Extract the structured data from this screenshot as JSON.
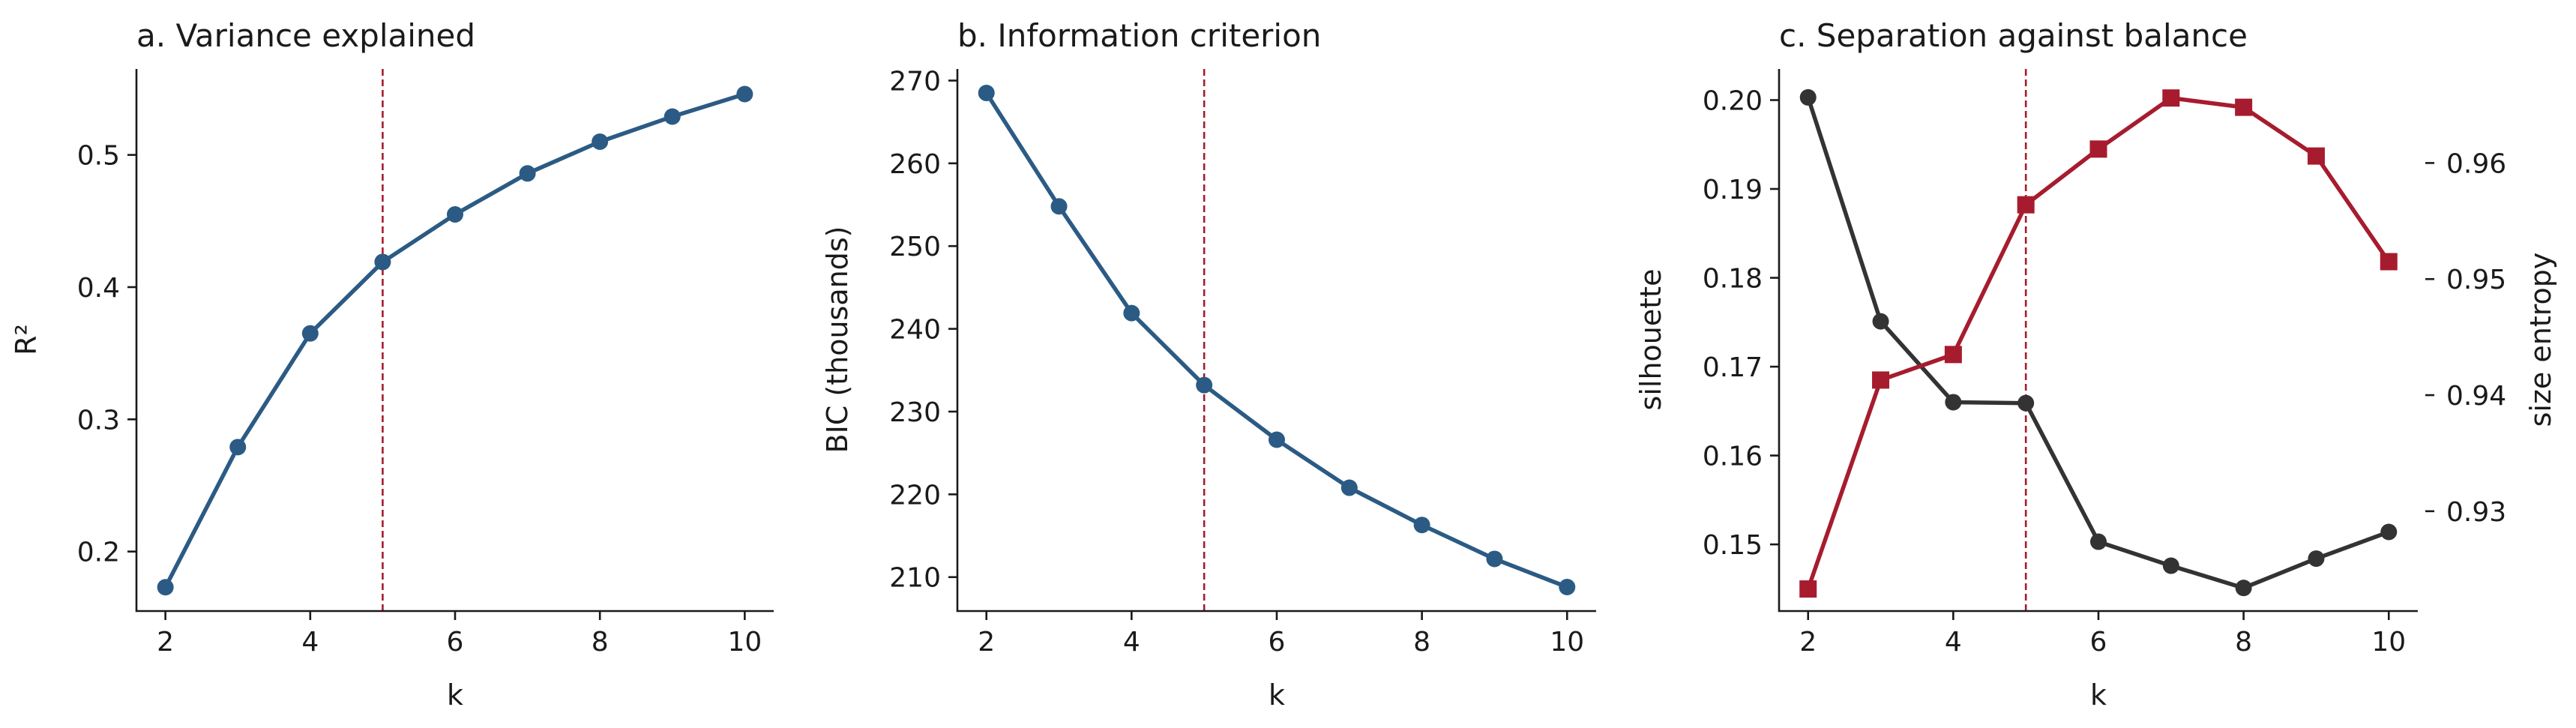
{
  "colors": {
    "blue": "#2b5b84",
    "red": "#a61c2e",
    "dark": "#333333",
    "refline": "#a61c2e"
  },
  "chart_data": [
    {
      "type": "line",
      "title": "a. Variance explained",
      "xlabel": "k",
      "ylabel": "R²",
      "x": [
        2,
        3,
        4,
        5,
        6,
        7,
        8,
        9,
        10
      ],
      "series": [
        {
          "values": [
            0.173,
            0.279,
            0.365,
            0.419,
            0.455,
            0.486,
            0.51,
            0.529,
            0.546
          ],
          "color": "#2b5b84",
          "marker": "circle"
        }
      ],
      "xlim": [
        1.6,
        10.4
      ],
      "ylim": [
        0.155,
        0.565
      ],
      "xticks": [
        2,
        4,
        6,
        8,
        10
      ],
      "yticks": [
        0.2,
        0.3,
        0.4,
        0.5
      ],
      "ytick_labels": [
        "0.2",
        "0.3",
        "0.4",
        "0.5"
      ],
      "vline": 5,
      "grid": false
    },
    {
      "type": "line",
      "title": "b. Information criterion",
      "xlabel": "k",
      "ylabel": "BIC (thousands)",
      "x": [
        2,
        3,
        4,
        5,
        6,
        7,
        8,
        9,
        10
      ],
      "series": [
        {
          "values": [
            268.5,
            254.8,
            241.9,
            233.2,
            226.6,
            220.8,
            216.3,
            212.2,
            208.8
          ],
          "color": "#2b5b84",
          "marker": "circle"
        }
      ],
      "xlim": [
        1.6,
        10.4
      ],
      "ylim": [
        205.9,
        271.4
      ],
      "xticks": [
        2,
        4,
        6,
        8,
        10
      ],
      "yticks": [
        210,
        220,
        230,
        240,
        250,
        260,
        270
      ],
      "ytick_labels": [
        "210",
        "220",
        "230",
        "240",
        "250",
        "260",
        "270"
      ],
      "vline": 5,
      "grid": false
    },
    {
      "type": "line",
      "title": "c. Separation against balance",
      "xlabel": "k",
      "ylabel": "silhouette",
      "y2label": "size entropy",
      "x": [
        2,
        3,
        4,
        5,
        6,
        7,
        8,
        9,
        10
      ],
      "series": [
        {
          "axis": "left",
          "values": [
            0.2003,
            0.1751,
            0.166,
            0.1659,
            0.1503,
            0.1476,
            0.1451,
            0.1484,
            0.1514
          ],
          "color": "#333333",
          "marker": "circle"
        },
        {
          "axis": "right",
          "values": [
            0.9233,
            0.9413,
            0.9435,
            0.9564,
            0.9612,
            0.9656,
            0.9648,
            0.9606,
            0.9515
          ],
          "color": "#a61c2e",
          "marker": "square"
        }
      ],
      "xlim": [
        1.6,
        10.4
      ],
      "ylim": [
        0.1425,
        0.2035
      ],
      "y2lim": [
        0.9214,
        0.9681
      ],
      "xticks": [
        2,
        4,
        6,
        8,
        10
      ],
      "yticks": [
        0.15,
        0.16,
        0.17,
        0.18,
        0.19,
        0.2
      ],
      "ytick_labels": [
        "0.15",
        "0.16",
        "0.17",
        "0.18",
        "0.19",
        "0.20"
      ],
      "y2ticks": [
        0.93,
        0.94,
        0.95,
        0.96
      ],
      "y2tick_labels": [
        "0.93",
        "0.94",
        "0.95",
        "0.96"
      ],
      "vline": 5,
      "grid": false
    }
  ]
}
